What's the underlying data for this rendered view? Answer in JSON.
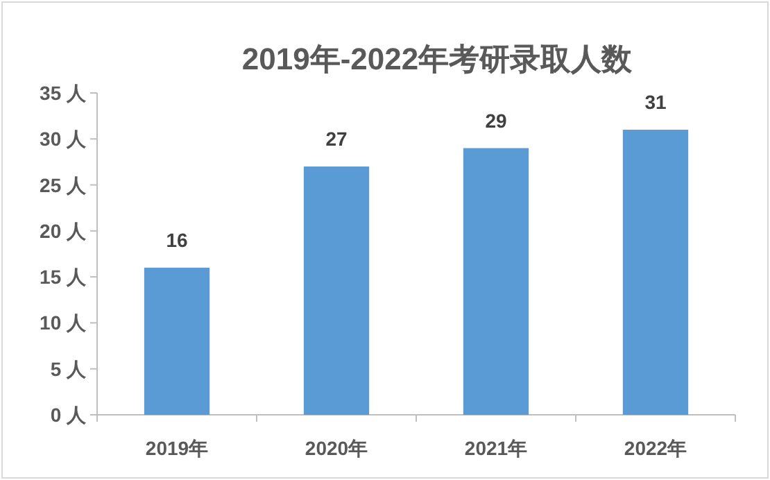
{
  "chart_data": {
    "type": "bar",
    "title": "2019年-2022年考研录取人数",
    "categories": [
      "2019年",
      "2020年",
      "2021年",
      "2022年"
    ],
    "values": [
      16,
      27,
      29,
      31
    ],
    "color": "#5b9bd5",
    "data_labels": true,
    "ylim": [
      0,
      35
    ],
    "yticks": [
      {
        "value": 0,
        "label": "0 人"
      },
      {
        "value": 5,
        "label": "5 人"
      },
      {
        "value": 10,
        "label": "10 人"
      },
      {
        "value": 15,
        "label": "15 人"
      },
      {
        "value": 20,
        "label": "20 人"
      },
      {
        "value": 25,
        "label": "25 人"
      },
      {
        "value": 30,
        "label": "30 人"
      },
      {
        "value": 35,
        "label": "35 人"
      }
    ]
  }
}
